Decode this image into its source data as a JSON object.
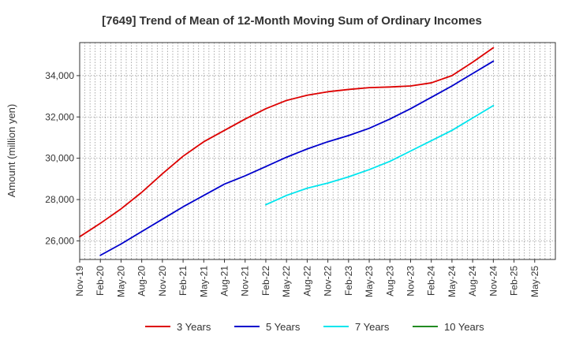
{
  "chart_data": {
    "type": "line",
    "title": "[7649]  Trend of Mean of 12-Month Moving Sum of Ordinary Incomes",
    "ylabel": "Amount (million yen)",
    "xlabel": "",
    "x_ticks": [
      "Nov-19",
      "Feb-20",
      "May-20",
      "Aug-20",
      "Nov-20",
      "Feb-21",
      "May-21",
      "Aug-21",
      "Nov-21",
      "Feb-22",
      "May-22",
      "Aug-22",
      "Nov-22",
      "Feb-23",
      "May-23",
      "Aug-23",
      "Nov-23",
      "Feb-24",
      "May-24",
      "Aug-24",
      "Nov-24",
      "Feb-25",
      "May-25"
    ],
    "y_ticks": [
      26000,
      28000,
      30000,
      32000,
      34000
    ],
    "y_tick_labels": [
      "26,000",
      "28,000",
      "30,000",
      "32,000",
      "34,000"
    ],
    "ylim": [
      25100,
      35600
    ],
    "grid": true,
    "legend_position": "bottom",
    "series": [
      {
        "name": "3 Years",
        "color": "#dd0000",
        "x": [
          "Nov-19",
          "Feb-20",
          "May-20",
          "Aug-20",
          "Nov-20",
          "Feb-21",
          "May-21",
          "Aug-21",
          "Nov-21",
          "Feb-22",
          "May-22",
          "Aug-22",
          "Nov-22",
          "Feb-23",
          "May-23",
          "Aug-23",
          "Nov-23",
          "Feb-24",
          "May-24",
          "Aug-24",
          "Nov-24"
        ],
        "values": [
          26200,
          26850,
          27550,
          28350,
          29250,
          30100,
          30800,
          31350,
          31900,
          32400,
          32800,
          33050,
          33220,
          33330,
          33420,
          33450,
          33500,
          33650,
          34000,
          34650,
          35350
        ]
      },
      {
        "name": "5 Years",
        "color": "#0000cc",
        "x": [
          "Feb-20",
          "May-20",
          "Aug-20",
          "Nov-20",
          "Feb-21",
          "May-21",
          "Aug-21",
          "Nov-21",
          "Feb-22",
          "May-22",
          "Aug-22",
          "Nov-22",
          "Feb-23",
          "May-23",
          "Aug-23",
          "Nov-23",
          "Feb-24",
          "May-24",
          "Aug-24",
          "Nov-24"
        ],
        "values": [
          25300,
          25850,
          26450,
          27050,
          27650,
          28200,
          28750,
          29150,
          29600,
          30050,
          30450,
          30800,
          31100,
          31450,
          31900,
          32400,
          32950,
          33500,
          34100,
          34700
        ]
      },
      {
        "name": "7 Years",
        "color": "#00e5ee",
        "x": [
          "Feb-22",
          "May-22",
          "Aug-22",
          "Nov-22",
          "Feb-23",
          "May-23",
          "Aug-23",
          "Nov-23",
          "Feb-24",
          "May-24",
          "Aug-24",
          "Nov-24"
        ],
        "values": [
          27750,
          28200,
          28550,
          28800,
          29100,
          29450,
          29850,
          30350,
          30850,
          31350,
          31950,
          32550
        ]
      },
      {
        "name": "10 Years",
        "color": "#228b22",
        "x": [],
        "values": []
      }
    ]
  }
}
